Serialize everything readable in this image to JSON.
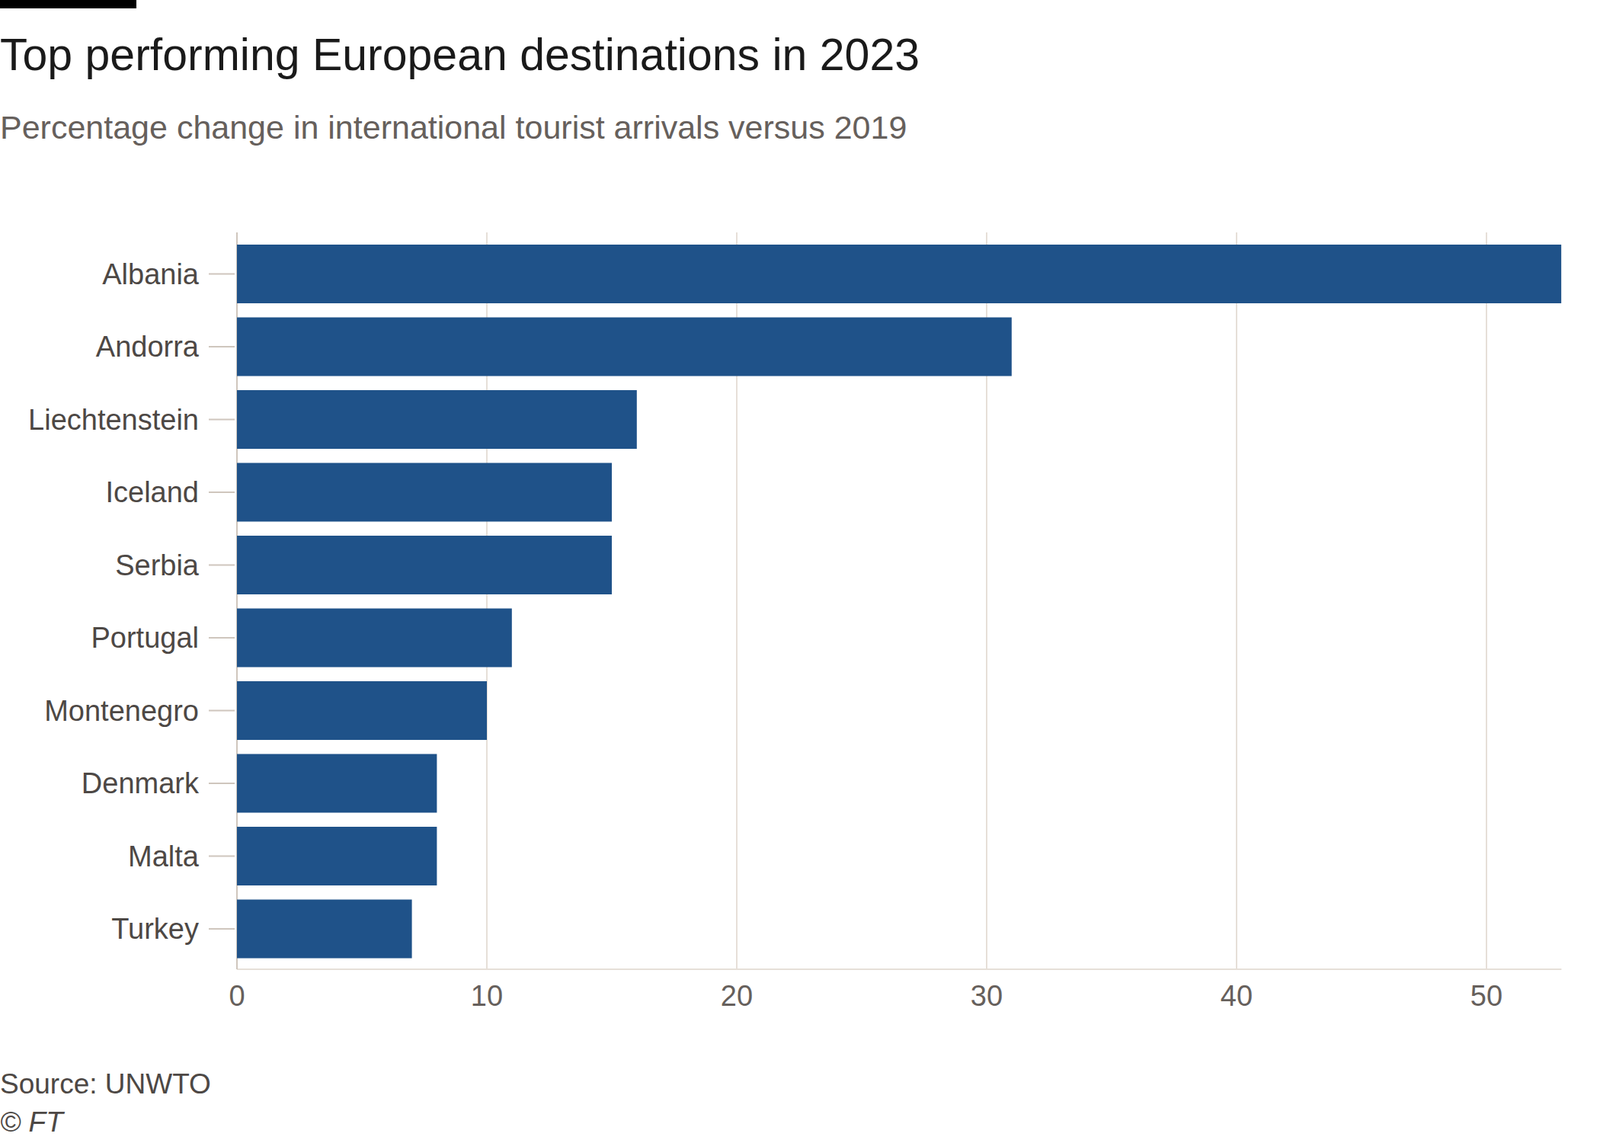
{
  "chart_data": {
    "type": "bar",
    "title": "Top performing European destinations in 2023",
    "subtitle": "Percentage change in international tourist arrivals versus 2019",
    "source": "Source: UNWTO",
    "credit": "© FT",
    "categories": [
      "Albania",
      "Andorra",
      "Liechtenstein",
      "Iceland",
      "Serbia",
      "Portugal",
      "Montenegro",
      "Denmark",
      "Malta",
      "Turkey"
    ],
    "values": [
      53,
      31,
      16,
      15,
      15,
      11,
      10,
      8,
      8,
      7
    ],
    "color": "#1f5289",
    "orientation": "horizontal",
    "xlim": [
      0,
      53
    ],
    "xticks": [
      0,
      10,
      20,
      30,
      40,
      50
    ],
    "grid": true
  }
}
